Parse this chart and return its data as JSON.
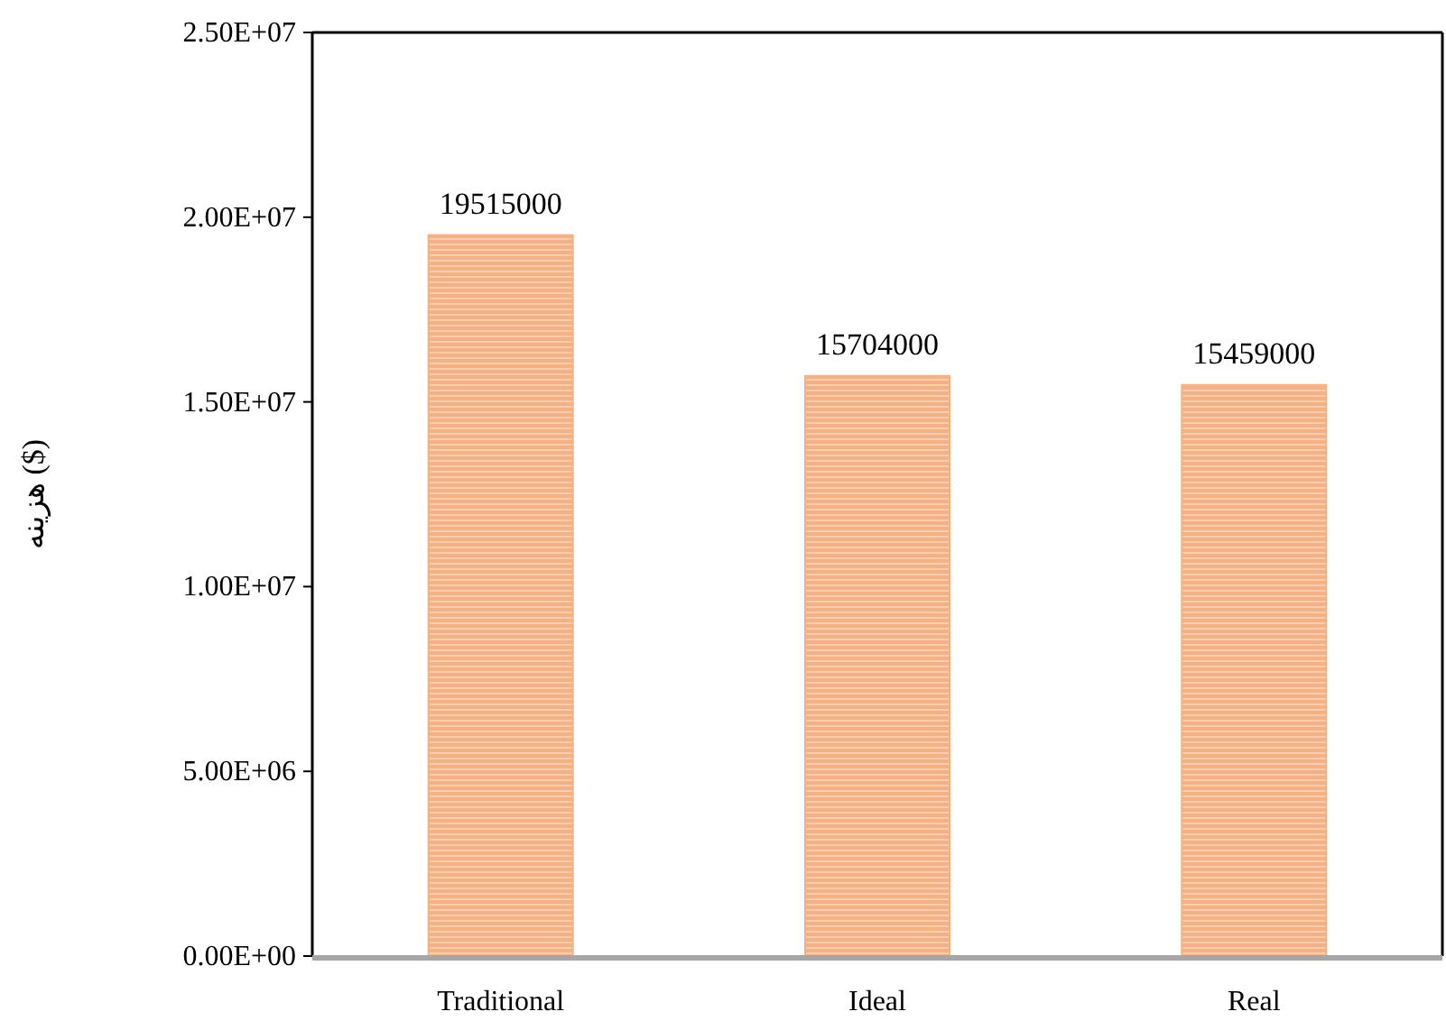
{
  "chart_data": {
    "type": "bar",
    "ylabel": "هزینه ($)",
    "categories": [
      "Traditional",
      "Ideal",
      "Real"
    ],
    "values": [
      19515000,
      15704000,
      15459000
    ],
    "color": "#f4b183",
    "data_labels": true,
    "grid": false,
    "ylim": [
      0,
      25000000
    ],
    "yticks": [
      {
        "value": 0,
        "label": "0.00E+00"
      },
      {
        "value": 5000000,
        "label": "5.00E+06"
      },
      {
        "value": 10000000,
        "label": "1.00E+07"
      },
      {
        "value": 15000000,
        "label": "1.50E+07"
      },
      {
        "value": 20000000,
        "label": "2.00E+07"
      },
      {
        "value": 25000000,
        "label": "2.50E+07"
      }
    ]
  }
}
